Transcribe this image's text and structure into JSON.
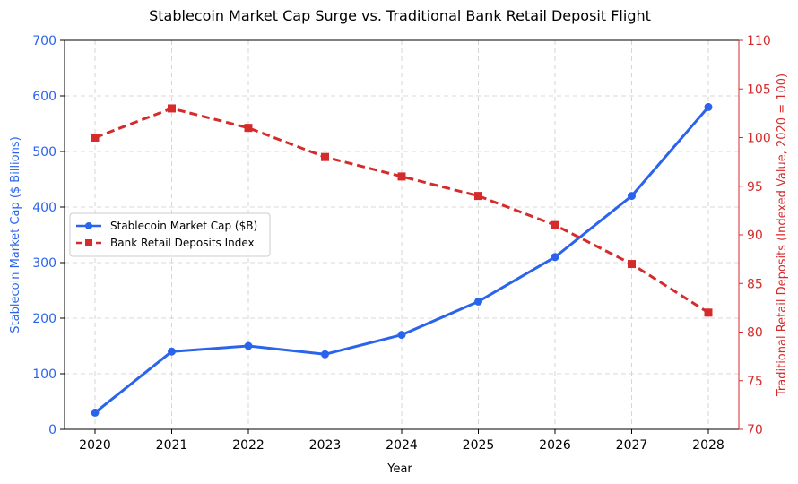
{
  "chart_data": {
    "type": "line",
    "title": "Stablecoin Market Cap Surge vs. Traditional Bank Retail Deposit Flight",
    "xlabel": "Year",
    "ylabel_left": "Stablecoin Market Cap ($ Billions)",
    "ylabel_right": "Traditional Retail Deposits (Indexed Value, 2020 = 100)",
    "categories": [
      "2020",
      "2021",
      "2022",
      "2023",
      "2024",
      "2025",
      "2026",
      "2027",
      "2028"
    ],
    "ylim_left": [
      0,
      700
    ],
    "yticks_left": [
      0,
      100,
      200,
      300,
      400,
      500,
      600,
      700
    ],
    "ylim_right": [
      70,
      110
    ],
    "yticks_right": [
      70,
      75,
      80,
      85,
      90,
      95,
      100,
      105,
      110
    ],
    "grid": true,
    "legend_position": "center-left",
    "series": [
      {
        "name": "Stablecoin Market Cap ($B)",
        "axis": "left",
        "color": "#2b64ec",
        "style": "solid",
        "marker": "circle",
        "values": [
          30,
          140,
          150,
          135,
          170,
          230,
          310,
          420,
          580
        ]
      },
      {
        "name": "Bank Retail Deposits Index",
        "axis": "right",
        "color": "#d62b2b",
        "style": "dashed",
        "marker": "square",
        "values": [
          100,
          103,
          101,
          98,
          96,
          94,
          91,
          87,
          82
        ]
      }
    ]
  }
}
